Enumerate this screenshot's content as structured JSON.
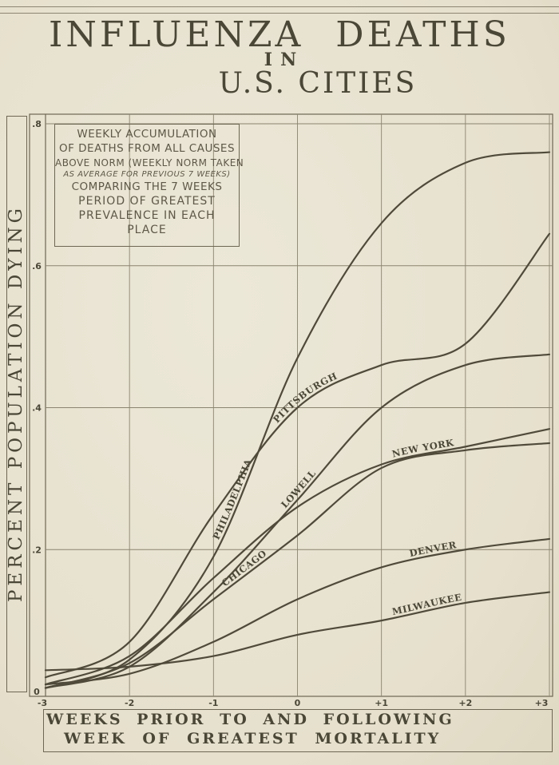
{
  "title": {
    "line1": "INFLUENZA DEATHS",
    "line2": "IN",
    "line3": "U.S. CITIES"
  },
  "legend": {
    "lines": [
      "WEEKLY ACCUMULATION",
      "OF DEATHS FROM ALL CAUSES",
      "ABOVE NORM (WEEKLY NORM TAKEN",
      "AS AVERAGE FOR PREVIOUS 7 WEEKS)",
      "COMPARING THE 7 WEEKS",
      "PERIOD OF GREATEST",
      "PREVALENCE IN EACH",
      "PLACE"
    ]
  },
  "axes": {
    "ylabel": "PERCENT POPULATION DYING",
    "xlabel_line1": "WEEKS PRIOR TO AND FOLLOWING",
    "xlabel_line2": "WEEK OF GREATEST MORTALITY",
    "xticks": [
      "-3",
      "-2",
      "-1",
      "0",
      "+1",
      "+2",
      "+3"
    ],
    "yticks": [
      "0",
      ".2",
      ".4",
      ".6",
      ".8"
    ]
  },
  "colors": {
    "paper": "#e9e4d3",
    "ink": "#4b4737",
    "grid": "#8a846f",
    "line": "#4f4a3a"
  },
  "chart_data": {
    "type": "line",
    "title": "Influenza Deaths in U.S. Cities",
    "subtitle": "Weekly accumulation of deaths from all causes above norm (weekly norm taken as average for previous 7 weeks) comparing the 7 weeks period of greatest prevalence in each place",
    "xlabel": "Weeks prior to and following week of greatest mortality",
    "ylabel": "Percent population dying",
    "x": [
      -3,
      -2,
      -1,
      0,
      1,
      2,
      3
    ],
    "xtick_labels": [
      "-3",
      "-2",
      "-1",
      "0",
      "+1",
      "+2",
      "+3"
    ],
    "ylim": [
      0,
      0.8
    ],
    "yticks": [
      0,
      0.2,
      0.4,
      0.6,
      0.8
    ],
    "ytick_labels": [
      "0",
      ".2",
      ".4",
      ".6",
      ".8"
    ],
    "grid": true,
    "legend_position": "inline labels on curves",
    "series": [
      {
        "name": "PHILADELPHIA",
        "values": [
          0.005,
          0.045,
          0.19,
          0.47,
          0.66,
          0.745,
          0.76
        ]
      },
      {
        "name": "PITTSBURGH",
        "values": [
          0.02,
          0.07,
          0.25,
          0.4,
          0.46,
          0.49,
          0.645
        ]
      },
      {
        "name": "LOWELL",
        "values": [
          0.005,
          0.035,
          0.14,
          0.27,
          0.4,
          0.46,
          0.475
        ]
      },
      {
        "name": "NEW YORK",
        "values": [
          0.01,
          0.05,
          0.16,
          0.26,
          0.32,
          0.345,
          0.37
        ]
      },
      {
        "name": "CHICAGO",
        "values": [
          0.005,
          0.04,
          0.13,
          0.22,
          0.315,
          0.34,
          0.35
        ]
      },
      {
        "name": "DENVER",
        "values": [
          0.01,
          0.025,
          0.07,
          0.13,
          0.175,
          0.2,
          0.215
        ]
      },
      {
        "name": "MILWAUKEE",
        "values": [
          0.03,
          0.035,
          0.05,
          0.08,
          0.1,
          0.125,
          0.14
        ]
      }
    ]
  }
}
